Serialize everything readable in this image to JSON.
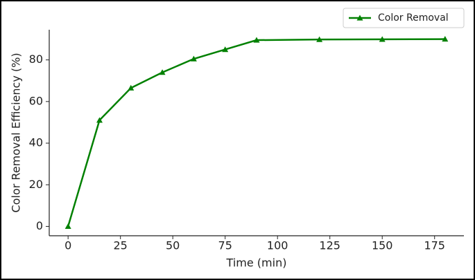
{
  "chart_data": {
    "type": "line",
    "x": [
      0,
      15,
      30,
      45,
      60,
      75,
      90,
      120,
      150,
      180
    ],
    "series": [
      {
        "name": "Color Removal",
        "color": "#008000",
        "values": [
          0,
          51,
          66.5,
          74,
          80.5,
          85,
          89.5,
          89.8,
          89.9,
          90
        ]
      }
    ],
    "xlabel": "Time (min)",
    "ylabel": "Color Removal Efficiency (%)",
    "xlim": [
      -9,
      189
    ],
    "ylim": [
      -4.5,
      94.5
    ],
    "xticks": [
      0,
      25,
      50,
      75,
      100,
      125,
      150,
      175
    ],
    "yticks": [
      0,
      20,
      40,
      60,
      80
    ],
    "legend": "upper right",
    "marker": "triangle"
  }
}
